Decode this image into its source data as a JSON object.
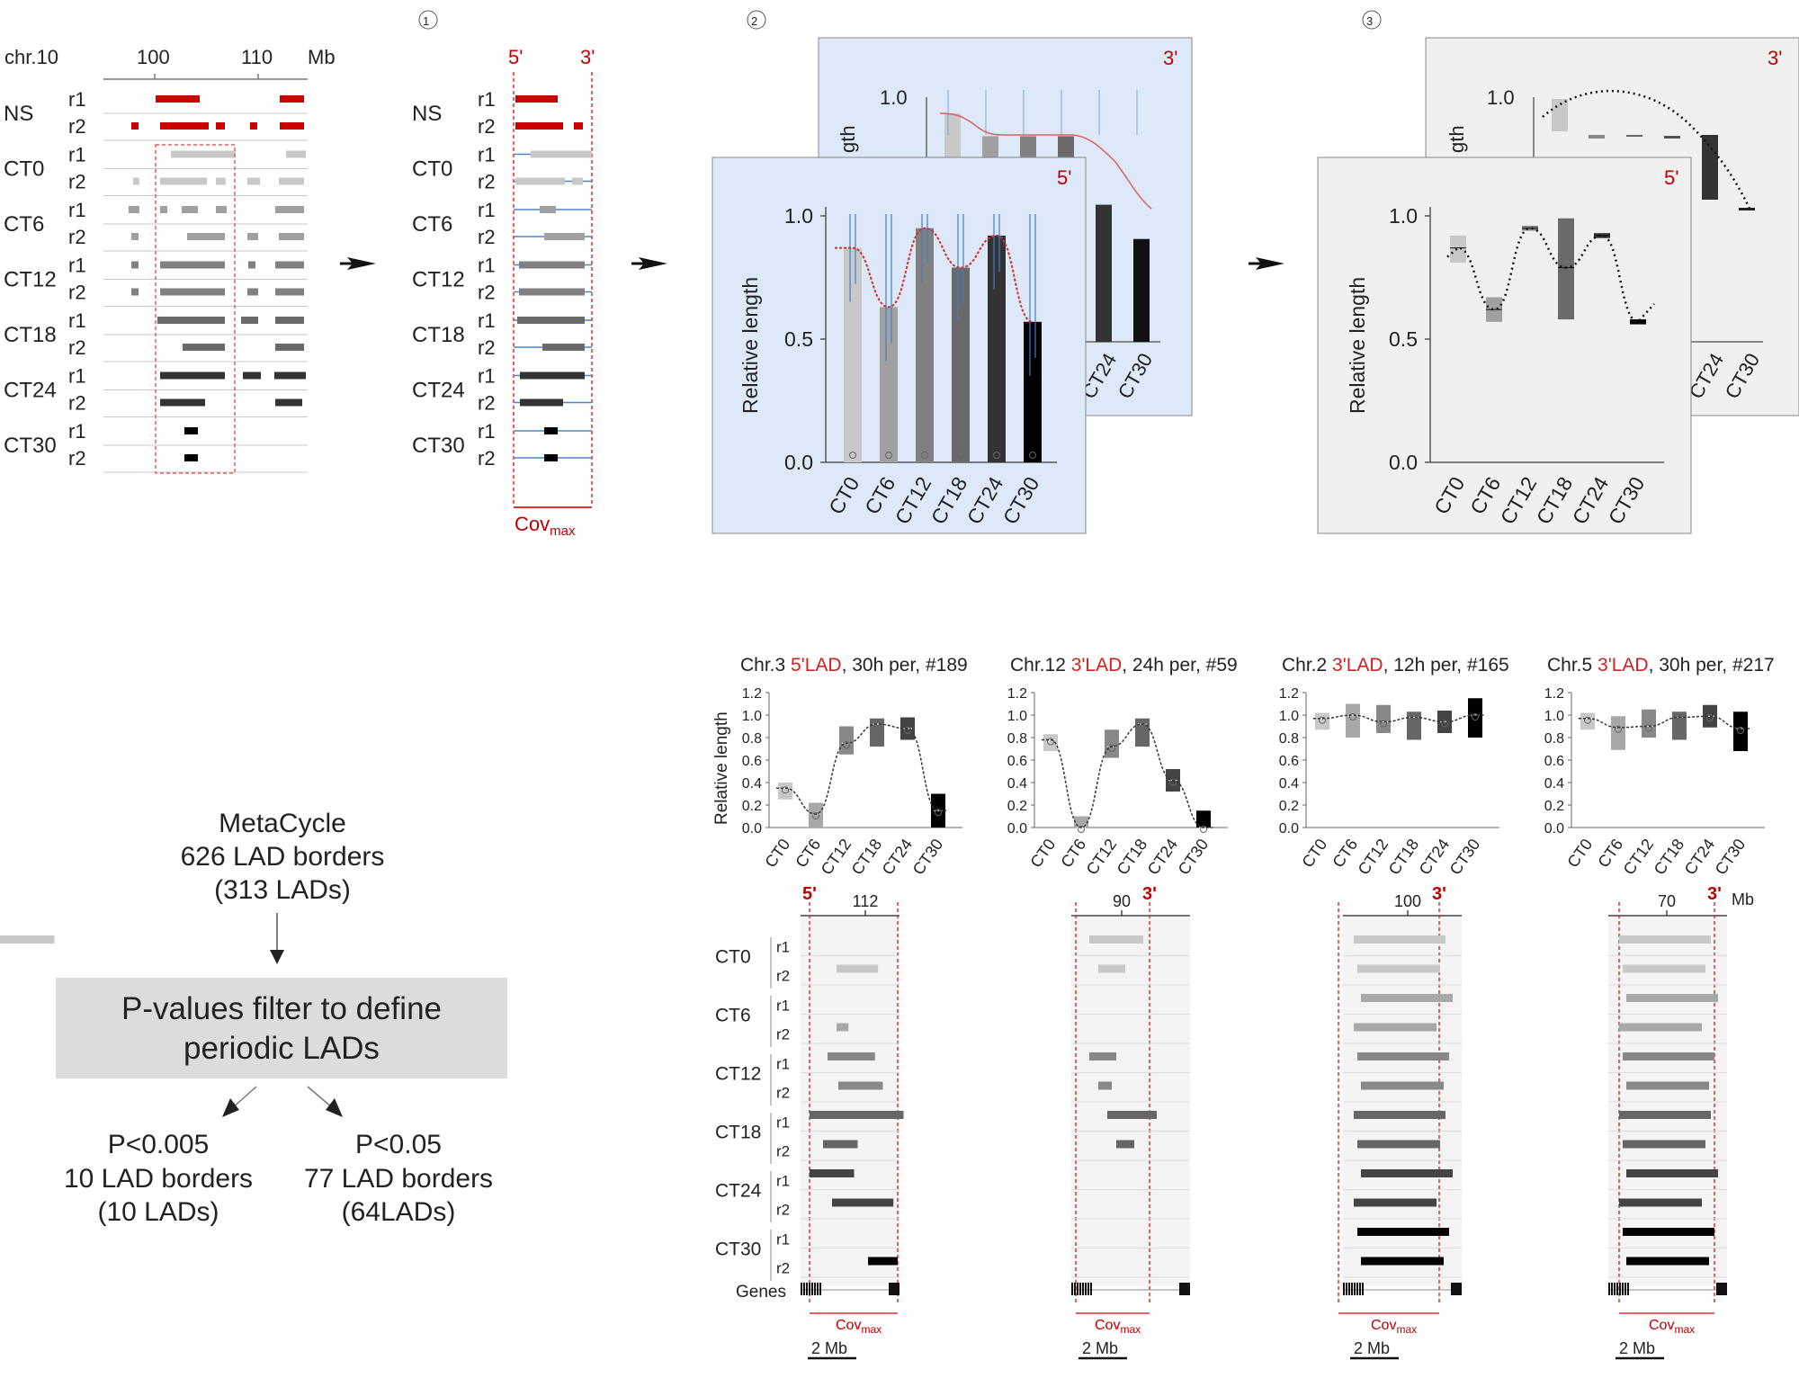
{
  "panel_a": {
    "chrom_label": "chr.10",
    "ticks": [
      "100",
      "110"
    ],
    "unit": "Mb",
    "sample_groups": [
      "NS",
      "CT0",
      "CT6",
      "CT12",
      "CT18",
      "CT24",
      "CT30"
    ],
    "replicates": [
      "r1",
      "r2"
    ],
    "colors": {
      "NS": "#cc0000",
      "CT0": "#c8c8c8",
      "CT6": "#a0a0a0",
      "CT12": "#808080",
      "CT18": "#6a6a6a",
      "CT24": "#333333",
      "CT30": "#000000"
    }
  },
  "panel_b": {
    "step": "①",
    "end5": "5'",
    "end3": "3'",
    "cov_base": "Cov",
    "cov_sub": "max",
    "sample_groups": [
      "NS",
      "CT0",
      "CT6",
      "CT12",
      "CT18",
      "CT24",
      "CT30"
    ],
    "replicates": [
      "r1",
      "r2"
    ]
  },
  "panel_c": {
    "step": "②",
    "back_label": "3'",
    "front_label": "5'",
    "ylabel": "Relative length",
    "back_ylabel_fragment": "gth",
    "back_ytick": "1.0",
    "yticks": [
      "1.0",
      "0.5",
      "0.0"
    ],
    "categories": [
      "CT0",
      "CT6",
      "CT12",
      "CT18",
      "CT24",
      "CT30"
    ],
    "panel_bg": "#dde9f8"
  },
  "panel_d": {
    "step": "③",
    "back_label": "3'",
    "front_label": "5'",
    "ylabel": "Relative length",
    "back_ylabel_fragment": "gth",
    "back_ytick": "1.0",
    "yticks": [
      "1.0",
      "0.5",
      "0.0"
    ],
    "categories": [
      "CT0",
      "CT6",
      "CT12",
      "CT18",
      "CT24",
      "CT30"
    ],
    "panel_bg": "#f0f0f0"
  },
  "flow": {
    "box1_line1": "MetaCycle",
    "box1_line2": "626 LAD borders",
    "box1_line3": "(313 LADs)",
    "filter_line1": "P-values filter to define",
    "filter_line2": "periodic LADs",
    "left_line1": "P<0.005",
    "left_line2": "10 LAD borders",
    "left_line3": "(10 LADs)",
    "right_line1": "P<0.05",
    "right_line2": "77 LAD borders",
    "right_line3": "(64LADs)"
  },
  "examples": {
    "ylabel": "Relative length",
    "yticks": [
      "1.2",
      "1.0",
      "0.8",
      "0.6",
      "0.4",
      "0.2",
      "0.0"
    ],
    "categories": [
      "CT0",
      "CT6",
      "CT12",
      "CT18",
      "CT24",
      "CT30"
    ],
    "genes_label": "Genes",
    "scale_label": "2 Mb",
    "cov_base": "Cov",
    "cov_sub": "max",
    "mb_unit": "Mb",
    "rows": [
      "CT0",
      "CT6",
      "CT12",
      "CT18",
      "CT24",
      "CT30"
    ],
    "replicates": [
      "r1",
      "r2"
    ],
    "items": [
      {
        "chr": "Chr.3 ",
        "lad": "5'LAD",
        "rest": ", 30h per, #189",
        "end": "5'",
        "tick": "112"
      },
      {
        "chr": "Chr.12 ",
        "lad": "3'LAD",
        "rest": ", 24h per, #59",
        "end": "3'",
        "tick": "90"
      },
      {
        "chr": "Chr.2 ",
        "lad": "3'LAD",
        "rest": ", 12h per, #165",
        "end": "3'",
        "tick": "100"
      },
      {
        "chr": "Chr.5 ",
        "lad": "3'LAD",
        "rest": ", 30h per, #217",
        "end": "3'",
        "tick": "70"
      }
    ]
  },
  "chart_data": [
    {
      "type": "bar",
      "title": "",
      "ylabel": "Relative length",
      "categories": [
        "CT0",
        "CT6",
        "CT12",
        "CT18",
        "CT24",
        "CT30"
      ],
      "values": [
        0.87,
        0.63,
        0.95,
        0.79,
        0.92,
        0.57
      ],
      "ylim": [
        0,
        1.0
      ]
    },
    {
      "type": "bar",
      "title": "",
      "categories": [
        "CT0",
        "CT6",
        "CT12",
        "CT18",
        "CT24",
        "CT30"
      ],
      "values": [
        1.0,
        0.9,
        0.9,
        0.9,
        0.6,
        0.45
      ],
      "ylim": [
        0,
        1.0
      ]
    },
    {
      "type": "box",
      "ylabel": "Relative length",
      "categories": [
        "CT0",
        "CT6",
        "CT12",
        "CT18",
        "CT24",
        "CT30"
      ],
      "medians": [
        0.87,
        0.62,
        0.95,
        0.79,
        0.92,
        0.57
      ],
      "ylim": [
        0,
        1.0
      ]
    },
    {
      "type": "box",
      "title": "Chr.3 5'LAD, 30h per, #189",
      "ylabel": "Relative length",
      "categories": [
        "CT0",
        "CT6",
        "CT12",
        "CT18",
        "CT24",
        "CT30"
      ],
      "medians": [
        0.35,
        0.12,
        0.75,
        0.92,
        0.88,
        0.15
      ],
      "ylim": [
        0,
        1.2
      ]
    },
    {
      "type": "box",
      "title": "Chr.12 3'LAD, 24h per, #59",
      "categories": [
        "CT0",
        "CT6",
        "CT12",
        "CT18",
        "CT24",
        "CT30"
      ],
      "medians": [
        0.78,
        0.0,
        0.72,
        0.92,
        0.42,
        0.0
      ],
      "ylim": [
        0,
        1.2
      ]
    },
    {
      "type": "box",
      "title": "Chr.2 3'LAD, 12h per, #165",
      "categories": [
        "CT0",
        "CT6",
        "CT12",
        "CT18",
        "CT24",
        "CT30"
      ],
      "medians": [
        0.97,
        1.0,
        0.94,
        0.98,
        0.94,
        1.0
      ],
      "ylim": [
        0,
        1.2
      ]
    },
    {
      "type": "box",
      "title": "Chr.5 3'LAD, 30h per, #217",
      "categories": [
        "CT0",
        "CT6",
        "CT12",
        "CT18",
        "CT24",
        "CT30"
      ],
      "medians": [
        0.97,
        0.89,
        0.9,
        0.98,
        0.99,
        0.88
      ],
      "ylim": [
        0,
        1.2
      ]
    }
  ]
}
